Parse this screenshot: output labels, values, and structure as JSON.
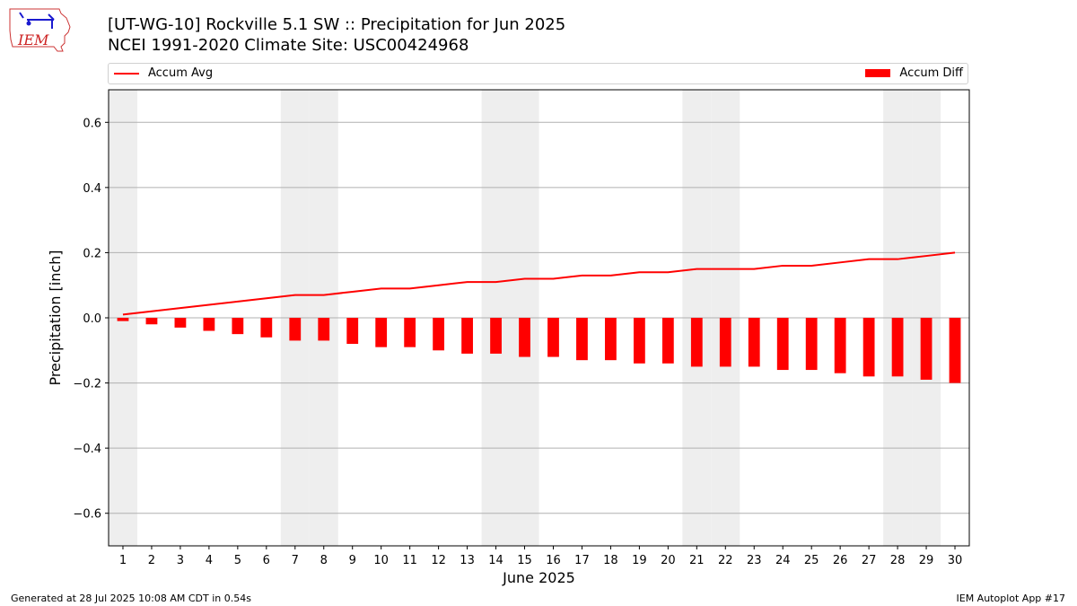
{
  "title_line1": "[UT-WG-10] Rockville 5.1 SW :: Precipitation for Jun 2025",
  "title_line2": "NCEI 1991-2020 Climate Site: USC00424968",
  "logo_text": "IEM",
  "footer_left": "Generated at 28 Jul 2025 10:08 AM CDT in 0.54s",
  "footer_right": "IEM Autoplot App #17",
  "colors": {
    "series": "#ff0000",
    "weekend_shade": "#eeeeee",
    "grid": "#b0b0b0"
  },
  "chart_data": {
    "type": "bar",
    "xlabel": "June 2025",
    "ylabel": "Precipitation [inch]",
    "ylim": [
      -0.7,
      0.7
    ],
    "yticks": [
      -0.6,
      -0.4,
      -0.2,
      0.0,
      0.2,
      0.4,
      0.6
    ],
    "ytick_labels": [
      "−0.6",
      "−0.4",
      "−0.2",
      "0.0",
      "0.2",
      "0.4",
      "0.6"
    ],
    "grid": "horizontal",
    "legend_placement": "top",
    "categories": [
      "1",
      "2",
      "3",
      "4",
      "5",
      "6",
      "7",
      "8",
      "9",
      "10",
      "11",
      "12",
      "13",
      "14",
      "15",
      "16",
      "17",
      "18",
      "19",
      "20",
      "21",
      "22",
      "23",
      "24",
      "25",
      "26",
      "27",
      "28",
      "29",
      "30"
    ],
    "shaded_days": [
      1,
      7,
      8,
      14,
      15,
      21,
      22,
      28,
      29
    ],
    "series": [
      {
        "name": "Accum Avg",
        "type": "line",
        "values": [
          0.01,
          0.02,
          0.03,
          0.04,
          0.05,
          0.06,
          0.07,
          0.07,
          0.08,
          0.09,
          0.09,
          0.1,
          0.11,
          0.11,
          0.12,
          0.12,
          0.13,
          0.13,
          0.14,
          0.14,
          0.15,
          0.15,
          0.15,
          0.16,
          0.16,
          0.17,
          0.18,
          0.18,
          0.19,
          0.2
        ]
      },
      {
        "name": "Accum Diff",
        "type": "bar",
        "values": [
          -0.01,
          -0.02,
          -0.03,
          -0.04,
          -0.05,
          -0.06,
          -0.07,
          -0.07,
          -0.08,
          -0.09,
          -0.09,
          -0.1,
          -0.11,
          -0.11,
          -0.12,
          -0.12,
          -0.13,
          -0.13,
          -0.14,
          -0.14,
          -0.15,
          -0.15,
          -0.15,
          -0.16,
          -0.16,
          -0.17,
          -0.18,
          -0.18,
          -0.19,
          -0.2
        ]
      }
    ]
  }
}
